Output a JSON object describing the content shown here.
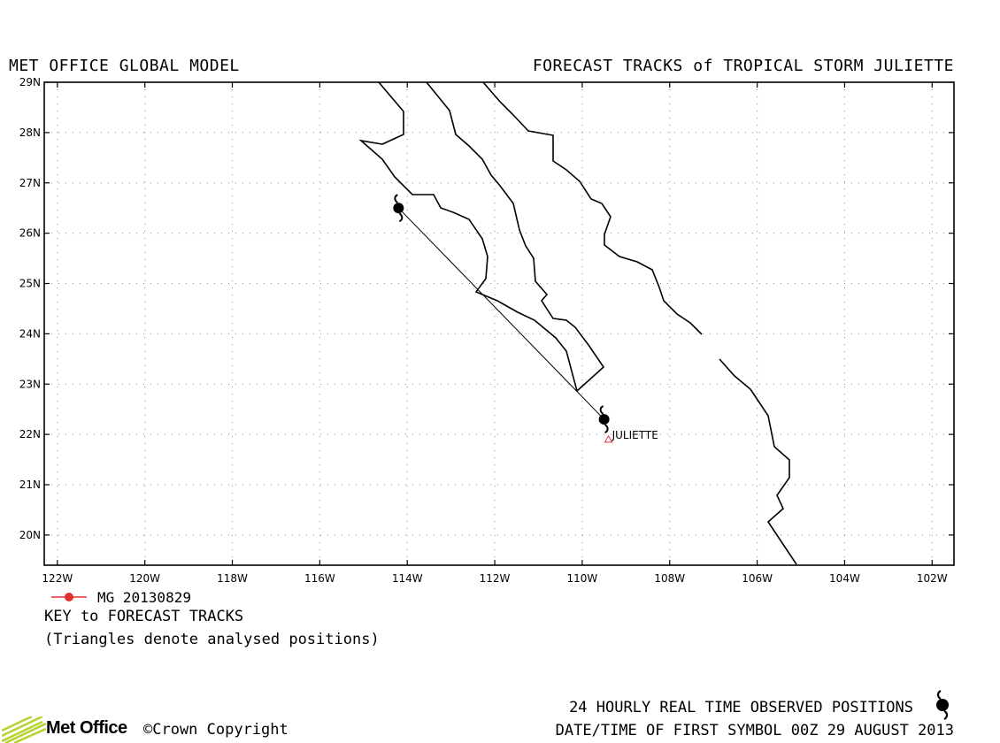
{
  "header": {
    "left_title": "MET OFFICE GLOBAL MODEL",
    "right_title": "FORECAST TRACKS of TROPICAL STORM JULIETTE"
  },
  "map": {
    "lon_range": [
      -122.3,
      -101.5
    ],
    "lat_range": [
      19.4,
      29
    ],
    "lat_ticks": [
      "29N",
      "28N",
      "27N",
      "26N",
      "25N",
      "24N",
      "23N",
      "22N",
      "21N",
      "20N"
    ],
    "lon_ticks": [
      "122W",
      "120W",
      "118W",
      "116W",
      "114W",
      "112W",
      "110W",
      "108W",
      "106W",
      "104W",
      "102W"
    ],
    "grid": "dotted",
    "coastline_color": "#000000",
    "track_color": "#000000",
    "analysis_color": "#e03030"
  },
  "storm": {
    "name": "JULIETTE",
    "forecast_track": [
      {
        "lon": -109.5,
        "lat": 22.3
      },
      {
        "lon": -114.2,
        "lat": 26.5
      }
    ],
    "analysed_position": {
      "lon": -109.4,
      "lat": 21.9
    }
  },
  "key": {
    "model_label": "MG 20130829",
    "model_color": "#e03030",
    "heading": "KEY to FORECAST TRACKS",
    "note": "(Triangles denote analysed positions)"
  },
  "footer": {
    "observed_positions": "24 HOURLY REAL TIME OBSERVED POSITIONS",
    "first_symbol": "DATE/TIME OF FIRST SYMBOL 00Z 29 AUGUST 2013",
    "symbol_icon": "cyclone-icon",
    "logo_text": "Met Office",
    "copyright": "©Crown Copyright",
    "logo_color": "#b5d334"
  }
}
